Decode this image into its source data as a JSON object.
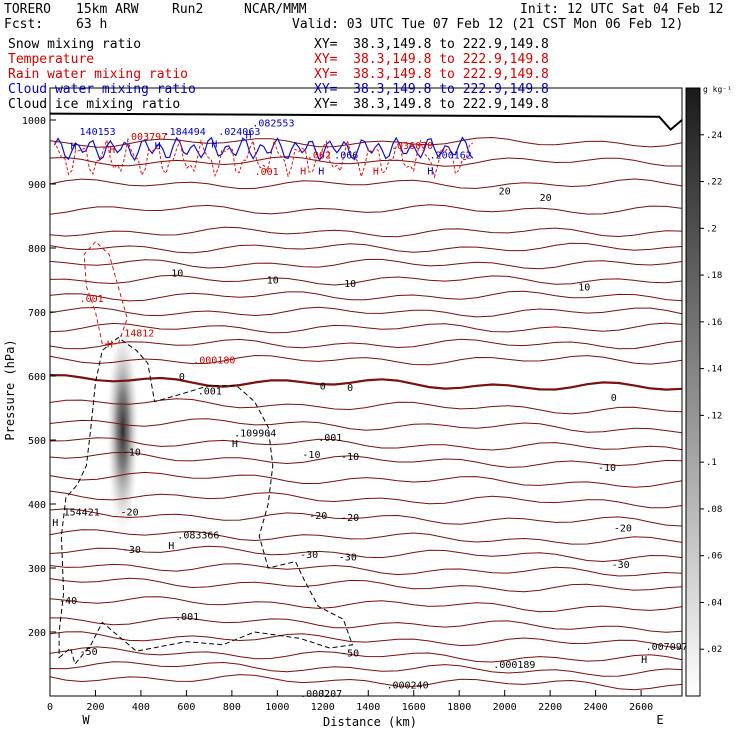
{
  "header": {
    "model": "TORERO",
    "res": "15km ARW",
    "run": "Run2",
    "org": "NCAR/MMM",
    "init": "Init: 12 UTC Sat 04 Feb 12",
    "fcst_label": "Fcst:",
    "fcst_value": "63 h",
    "valid": "Valid: 03 UTC Tue 07 Feb 12 (21 CST Mon 06 Feb 12)"
  },
  "fields": [
    {
      "name": "Snow mixing ratio",
      "color": "#000000",
      "xy": "XY=  38.3,149.8 to 222.9,149.8"
    },
    {
      "name": "Temperature",
      "color": "#d40000",
      "xy": "XY=  38.3,149.8 to 222.9,149.8"
    },
    {
      "name": "Rain water mixing ratio",
      "color": "#d40000",
      "xy": "XY=  38.3,149.8 to 222.9,149.8"
    },
    {
      "name": "Cloud water mixing ratio",
      "color": "#0000cc",
      "xy": "XY=  38.3,149.8 to 222.9,149.8"
    },
    {
      "name": "Cloud ice mixing ratio",
      "color": "#000000",
      "xy": "XY=  38.3,149.8 to 222.9,149.8"
    }
  ],
  "colors": {
    "temperature": "#7a1010",
    "rain": "#e01010",
    "cloud_water": "#1010d0",
    "snow": "#000000"
  },
  "chart_data": {
    "type": "cross-section",
    "xlabel": "Distance (km)",
    "ylabel": "Pressure (hPa)",
    "x_ticks": [
      0,
      200,
      400,
      600,
      800,
      1000,
      1200,
      1400,
      1600,
      1800,
      2000,
      2200,
      2400,
      2600
    ],
    "y_ticks": [
      200,
      300,
      400,
      500,
      600,
      700,
      800,
      900,
      1000
    ],
    "xlim": [
      0,
      2780
    ],
    "ylim": [
      1050,
      100
    ],
    "x_end_labels": [
      "W",
      "E"
    ],
    "colorbar": {
      "unit": "g kg⁻¹",
      "ticks": [
        ".02",
        ".04",
        ".06",
        ".08",
        ".1",
        ".12",
        ".14",
        ".16",
        ".18",
        ".2",
        ".22",
        ".24"
      ]
    },
    "isotherm_labels": [
      {
        "x": 170,
        "p": 170,
        "t": "-50"
      },
      {
        "x": 1320,
        "p": 168,
        "t": "-50"
      },
      {
        "x": 80,
        "p": 250,
        "t": "-40"
      },
      {
        "x": 360,
        "p": 330,
        "t": "-30"
      },
      {
        "x": 1140,
        "p": 322,
        "t": "-30"
      },
      {
        "x": 1310,
        "p": 318,
        "t": "-30"
      },
      {
        "x": 2510,
        "p": 306,
        "t": "-30"
      },
      {
        "x": 350,
        "p": 388,
        "t": "-20"
      },
      {
        "x": 1180,
        "p": 383,
        "t": "-20"
      },
      {
        "x": 1320,
        "p": 380,
        "t": "-20"
      },
      {
        "x": 2520,
        "p": 363,
        "t": "-20"
      },
      {
        "x": 360,
        "p": 482,
        "t": "-10"
      },
      {
        "x": 1150,
        "p": 478,
        "t": "-10"
      },
      {
        "x": 1320,
        "p": 475,
        "t": "-10"
      },
      {
        "x": 2450,
        "p": 458,
        "t": "-10"
      },
      {
        "x": 580,
        "p": 600,
        "t": "0"
      },
      {
        "x": 1200,
        "p": 585,
        "t": "0"
      },
      {
        "x": 1320,
        "p": 583,
        "t": "0"
      },
      {
        "x": 2480,
        "p": 567,
        "t": "0"
      },
      {
        "x": 560,
        "p": 762,
        "t": "10"
      },
      {
        "x": 980,
        "p": 751,
        "t": "10"
      },
      {
        "x": 1320,
        "p": 745,
        "t": "10"
      },
      {
        "x": 2350,
        "p": 740,
        "t": "10"
      },
      {
        "x": 2000,
        "p": 890,
        "t": "20"
      },
      {
        "x": 2180,
        "p": 880,
        "t": "20"
      }
    ],
    "extrema": [
      {
        "x": 1100,
        "p": 105,
        "t": ".000207",
        "c": "black"
      },
      {
        "x": 1480,
        "p": 118,
        "t": ".000240",
        "c": "black"
      },
      {
        "x": 1950,
        "p": 150,
        "t": ".000189",
        "c": "black"
      },
      {
        "x": 2600,
        "p": 158,
        "t": "H",
        "c": "black"
      },
      {
        "x": 2620,
        "p": 178,
        "t": ".007097",
        "c": "black"
      },
      {
        "x": 550,
        "p": 225,
        "t": ".001",
        "c": "black"
      },
      {
        "x": 520,
        "p": 336,
        "t": "H",
        "c": "black"
      },
      {
        "x": 560,
        "p": 352,
        "t": ".083366",
        "c": "black"
      },
      {
        "x": 10,
        "p": 372,
        "t": "H",
        "c": "black"
      },
      {
        "x": 60,
        "p": 388,
        "t": "154421",
        "c": "black"
      },
      {
        "x": 800,
        "p": 495,
        "t": "H",
        "c": "black"
      },
      {
        "x": 810,
        "p": 512,
        "t": ".109904",
        "c": "black"
      },
      {
        "x": 1180,
        "p": 505,
        "t": ".001",
        "c": "black"
      },
      {
        "x": 650,
        "p": 577,
        "t": ".001",
        "c": "black"
      },
      {
        "x": 630,
        "p": 626,
        "t": ".000180",
        "c": "red"
      },
      {
        "x": 250,
        "p": 651,
        "t": "H",
        "c": "red"
      },
      {
        "x": 300,
        "p": 668,
        "t": ".14812",
        "c": "red"
      },
      {
        "x": 130,
        "p": 722,
        "t": ".001",
        "c": "red"
      },
      {
        "x": 900,
        "p": 920,
        "t": ".001",
        "c": "red"
      },
      {
        "x": 1100,
        "p": 921,
        "t": "H",
        "c": "red"
      },
      {
        "x": 1180,
        "p": 921,
        "t": "H",
        "c": "blue"
      },
      {
        "x": 1420,
        "p": 921,
        "t": "H",
        "c": "red"
      },
      {
        "x": 1660,
        "p": 921,
        "t": "H",
        "c": "blue"
      },
      {
        "x": 1130,
        "p": 946,
        "t": ".062",
        "c": "red"
      },
      {
        "x": 1250,
        "p": 946,
        "t": ".066",
        "c": "blue"
      },
      {
        "x": 1670,
        "p": 946,
        "t": ".200162",
        "c": "blue"
      },
      {
        "x": 1500,
        "p": 961,
        "t": ".036070",
        "c": "red"
      },
      {
        "x": 260,
        "p": 955,
        "t": "H",
        "c": "red"
      },
      {
        "x": 330,
        "p": 975,
        "t": ".003797",
        "c": "red"
      },
      {
        "x": 90,
        "p": 960,
        "t": "H",
        "c": "blue"
      },
      {
        "x": 130,
        "p": 983,
        "t": "140153",
        "c": "blue"
      },
      {
        "x": 460,
        "p": 961,
        "t": "H",
        "c": "blue"
      },
      {
        "x": 500,
        "p": 983,
        "t": ".184494",
        "c": "blue"
      },
      {
        "x": 710,
        "p": 963,
        "t": "H",
        "c": "blue"
      },
      {
        "x": 740,
        "p": 983,
        "t": ".024063",
        "c": "blue"
      },
      {
        "x": 860,
        "p": 977,
        "t": "H",
        "c": "blue"
      },
      {
        "x": 890,
        "p": 996,
        "t": ".082553",
        "c": "blue"
      }
    ]
  }
}
